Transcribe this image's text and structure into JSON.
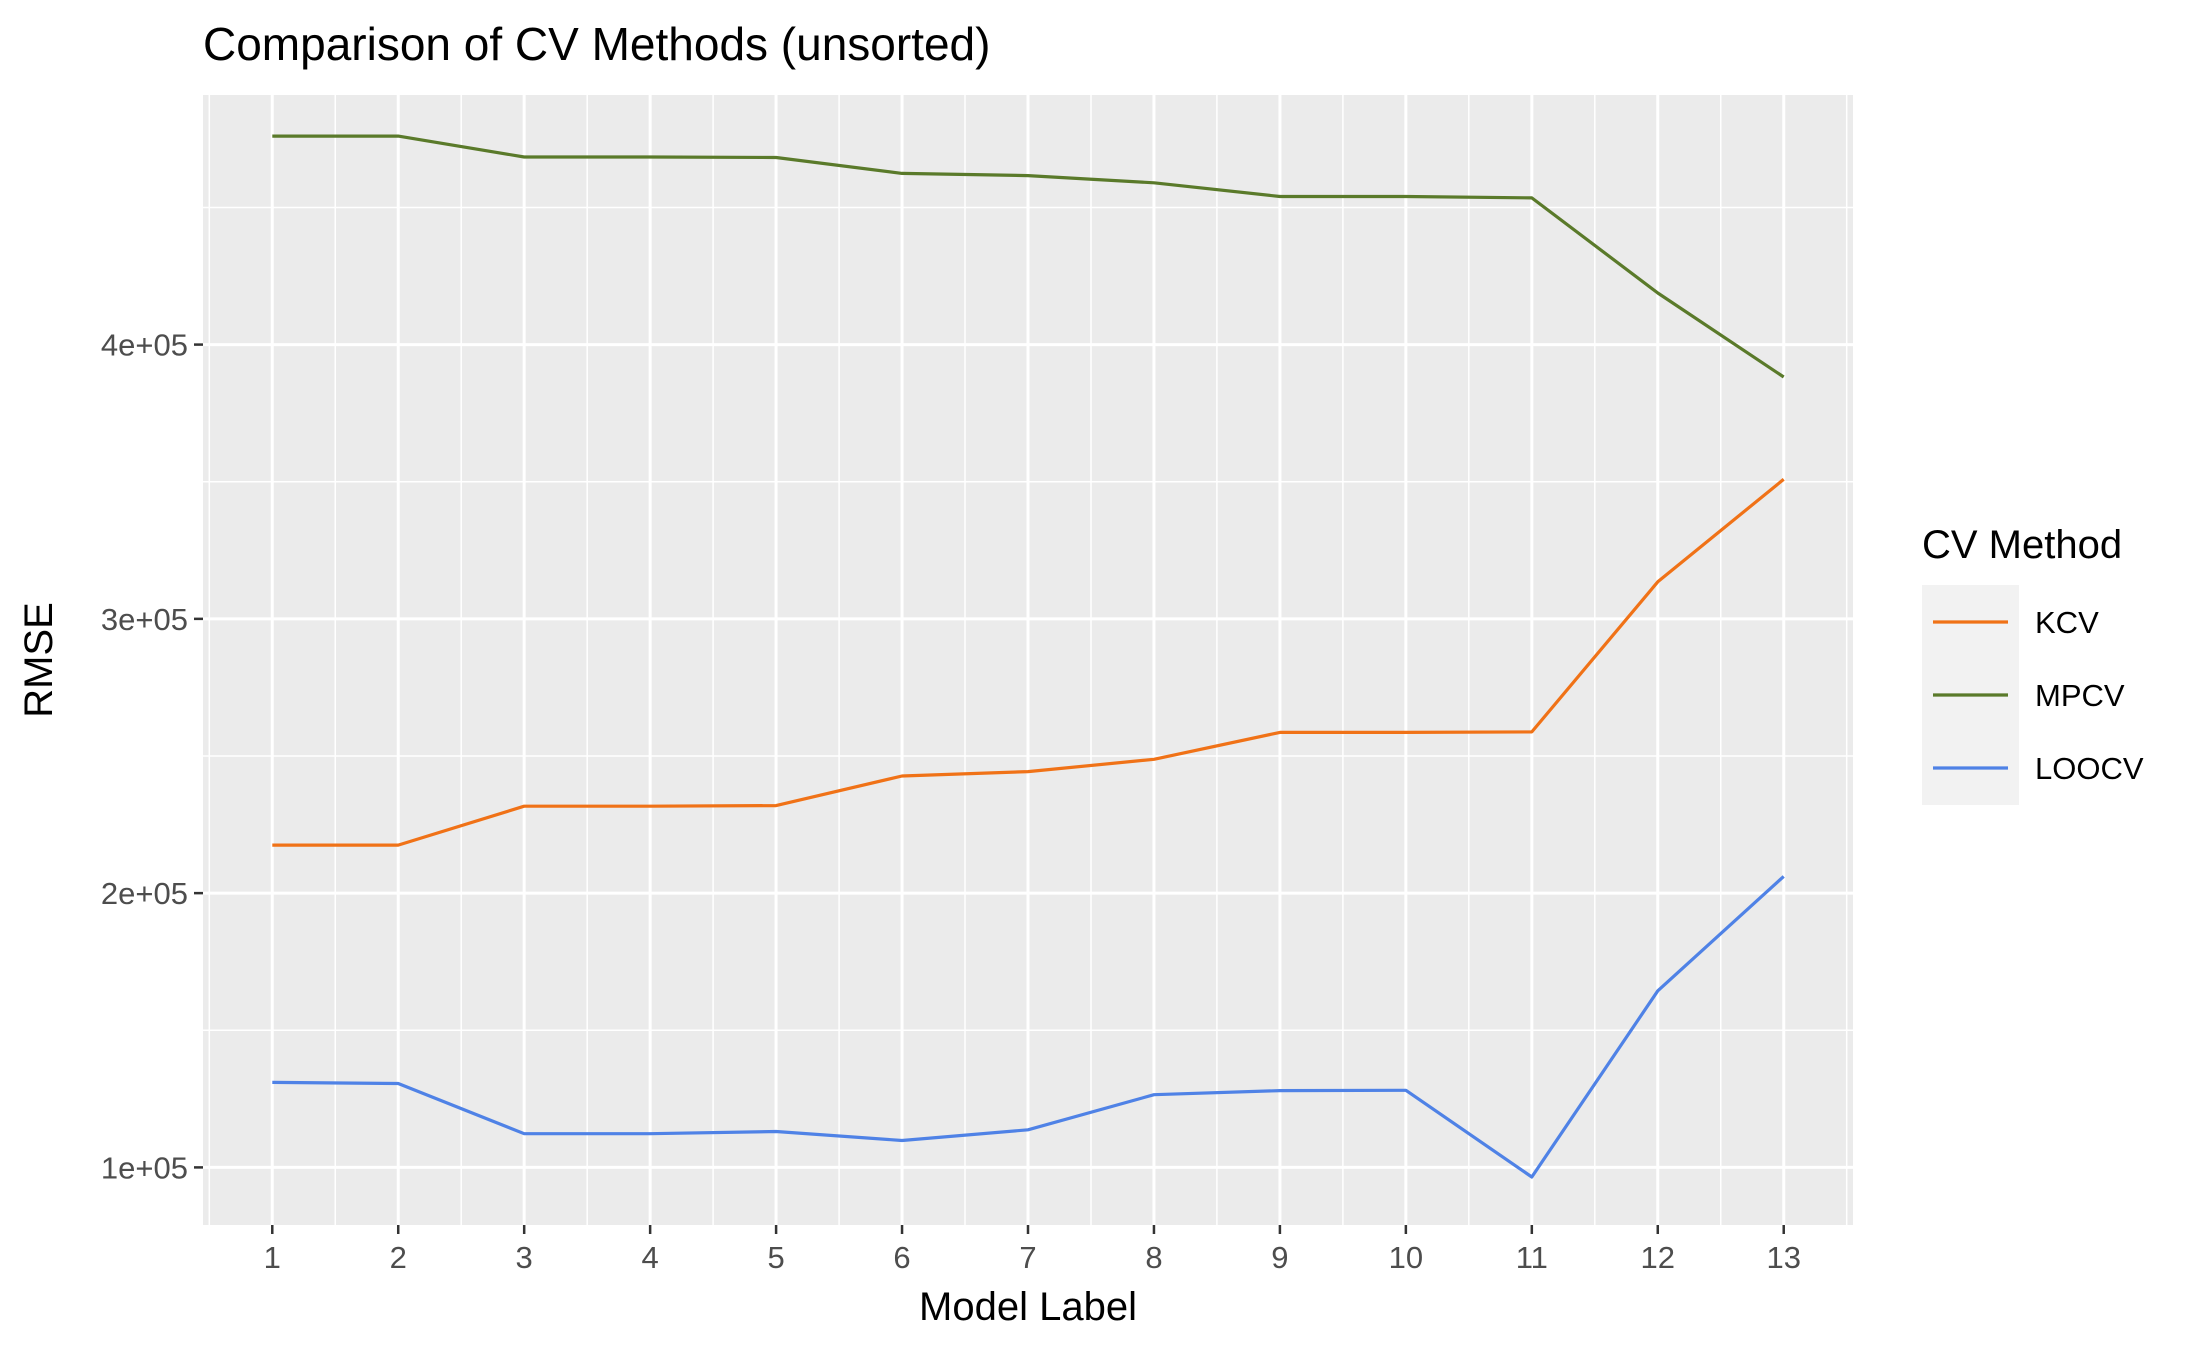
{
  "chart_data": {
    "type": "line",
    "title": "Comparison of CV Methods (unsorted)",
    "xlabel": "Model Label",
    "ylabel": "RMSE",
    "x": [
      1,
      2,
      3,
      4,
      5,
      6,
      7,
      8,
      9,
      10,
      11,
      12,
      13
    ],
    "x_tick_labels": [
      "1",
      "2",
      "3",
      "4",
      "5",
      "6",
      "7",
      "8",
      "9",
      "10",
      "11",
      "12",
      "13"
    ],
    "xlim": [
      0.45,
      13.55
    ],
    "ylim": [
      79000,
      491000
    ],
    "y_ticks": [
      100000,
      200000,
      300000,
      400000
    ],
    "y_tick_labels": [
      "1e+05",
      "2e+05",
      "3e+05",
      "4e+05"
    ],
    "grid": true,
    "legend": {
      "title": "CV Method",
      "placement": "right",
      "entries": [
        "KCV",
        "MPCV",
        "LOOCV"
      ]
    },
    "series": [
      {
        "name": "KCV",
        "color": "#f07217",
        "values": [
          217500,
          217500,
          231700,
          231700,
          231900,
          242700,
          244300,
          248800,
          258600,
          258600,
          258800,
          313500,
          350900
        ]
      },
      {
        "name": "MPCV",
        "color": "#5a7a2a",
        "values": [
          476000,
          476000,
          468400,
          468400,
          468200,
          462400,
          461600,
          459000,
          454000,
          454000,
          453500,
          418800,
          388200
        ]
      },
      {
        "name": "LOOCV",
        "color": "#4f82e6",
        "values": [
          131000,
          130600,
          112300,
          112300,
          113100,
          109800,
          113700,
          126500,
          128000,
          128100,
          96500,
          164400,
          206100
        ]
      }
    ]
  }
}
